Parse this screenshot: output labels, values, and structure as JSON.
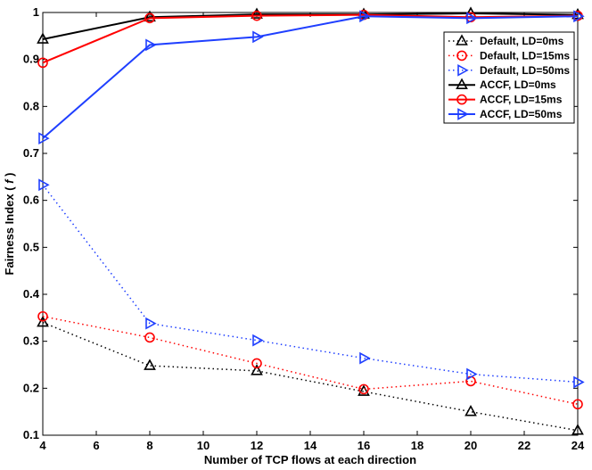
{
  "chart_data": {
    "type": "line",
    "title": "",
    "xlabel": "Number of TCP flows at each direction",
    "ylabel": "Fairness Index ( f )",
    "ylabel_parts": {
      "prefix": "Fairness Index ( ",
      "symbol": "f",
      "suffix": " )"
    },
    "xlim": [
      4,
      24
    ],
    "ylim": [
      0.1,
      1.0
    ],
    "xticks": [
      4,
      6,
      8,
      10,
      12,
      14,
      16,
      18,
      20,
      22,
      24
    ],
    "yticks": [
      0.1,
      0.2,
      0.3,
      0.4,
      0.5,
      0.6,
      0.7,
      0.8,
      0.9,
      1.0
    ],
    "ytick_labels": [
      "0.1",
      "0.2",
      "0.3",
      "0.4",
      "0.5",
      "0.6",
      "0.7",
      "0.8",
      "0.9",
      "1"
    ],
    "grid": false,
    "legend_position": "top-right",
    "x": [
      4,
      8,
      12,
      16,
      20,
      24
    ],
    "series": [
      {
        "name": "Default, LD=0ms",
        "color": "#000000",
        "marker": "triangle-up",
        "style": "dotted",
        "values": [
          0.34,
          0.248,
          0.237,
          0.193,
          0.15,
          0.11
        ]
      },
      {
        "name": "Default, LD=15ms",
        "color": "#ff0000",
        "marker": "circle",
        "style": "dotted",
        "values": [
          0.353,
          0.308,
          0.253,
          0.198,
          0.215,
          0.166
        ]
      },
      {
        "name": "Default, LD=50ms",
        "color": "#1f3fff",
        "marker": "triangle-right",
        "style": "dotted",
        "values": [
          0.633,
          0.338,
          0.302,
          0.264,
          0.23,
          0.213
        ]
      },
      {
        "name": "ACCF, LD=0ms",
        "color": "#000000",
        "marker": "triangle-up",
        "style": "solid",
        "values": [
          0.943,
          0.99,
          0.996,
          0.996,
          0.998,
          0.995
        ]
      },
      {
        "name": "ACCF, LD=15ms",
        "color": "#ff0000",
        "marker": "circle",
        "style": "solid",
        "values": [
          0.893,
          0.988,
          0.993,
          0.995,
          0.99,
          0.993
        ]
      },
      {
        "name": "ACCF, LD=50ms",
        "color": "#1f3fff",
        "marker": "triangle-right",
        "style": "solid",
        "values": [
          0.732,
          0.931,
          0.948,
          0.992,
          0.988,
          0.992
        ]
      }
    ]
  }
}
